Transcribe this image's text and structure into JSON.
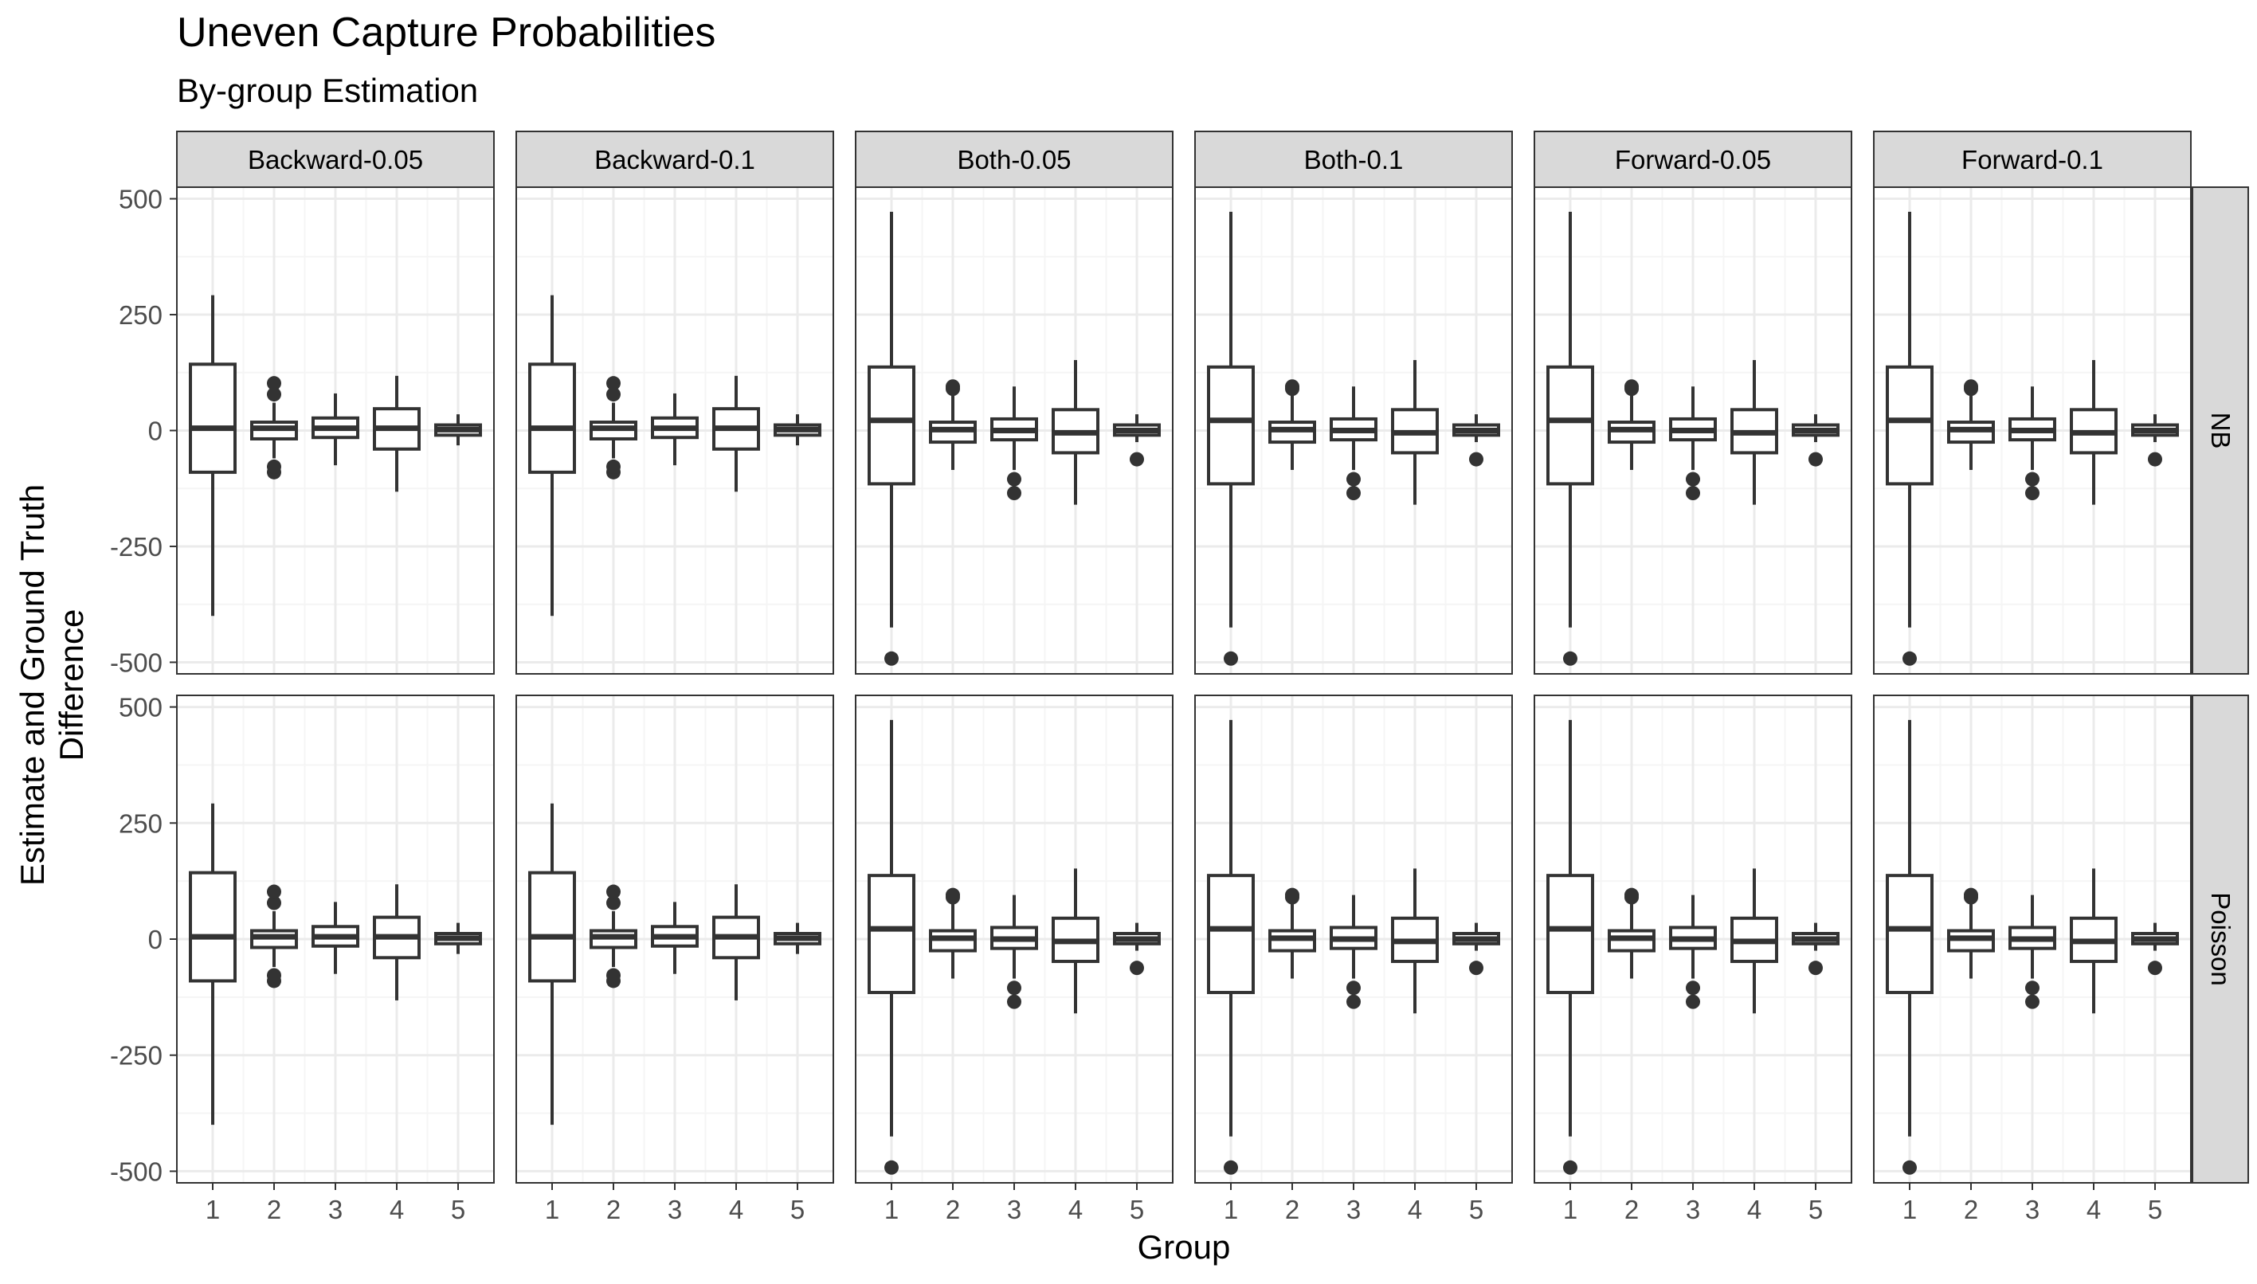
{
  "chart_data": {
    "type": "boxplot",
    "title": "Uneven Capture Probabilities",
    "subtitle": "By-group Estimation",
    "xlabel": "Group",
    "ylabel_lines": [
      "Estimate and Ground Truth",
      "Difference"
    ],
    "categories": [
      "1",
      "2",
      "3",
      "4",
      "5"
    ],
    "y_ticks": [
      500,
      250,
      0,
      -250,
      -500
    ],
    "y_tick_labels": [
      "500",
      "250",
      "0",
      "-250",
      "-500"
    ],
    "ylim": [
      -525,
      525
    ],
    "grid": true,
    "facet_columns": [
      "Backward-0.05",
      "Backward-0.1",
      "Both-0.05",
      "Both-0.1",
      "Forward-0.05",
      "Forward-0.1"
    ],
    "facet_rows": [
      "NB",
      "Poisson"
    ],
    "box_sets": {
      "backward": [
        {
          "group": "1",
          "whisker_low": -400,
          "q1": -90,
          "median": 5,
          "q3": 143,
          "whisker_high": 292,
          "outliers": []
        },
        {
          "group": "2",
          "whisker_low": -60,
          "q1": -18,
          "median": 5,
          "q3": 18,
          "whisker_high": 60,
          "outliers": [
            -90,
            -78,
            78,
            102
          ]
        },
        {
          "group": "3",
          "whisker_low": -75,
          "q1": -15,
          "median": 5,
          "q3": 27,
          "whisker_high": 80,
          "outliers": []
        },
        {
          "group": "4",
          "whisker_low": -132,
          "q1": -40,
          "median": 5,
          "q3": 47,
          "whisker_high": 118,
          "outliers": []
        },
        {
          "group": "5",
          "whisker_low": -32,
          "q1": -10,
          "median": 2,
          "q3": 12,
          "whisker_high": 35,
          "outliers": []
        }
      ],
      "both_forward": [
        {
          "group": "1",
          "whisker_low": -425,
          "q1": -115,
          "median": 22,
          "q3": 137,
          "whisker_high": 472,
          "outliers": [
            -492
          ]
        },
        {
          "group": "2",
          "whisker_low": -85,
          "q1": -25,
          "median": 2,
          "q3": 18,
          "whisker_high": 85,
          "outliers": [
            90,
            95
          ]
        },
        {
          "group": "3",
          "whisker_low": -85,
          "q1": -20,
          "median": 0,
          "q3": 25,
          "whisker_high": 95,
          "outliers": [
            -105,
            -135
          ]
        },
        {
          "group": "4",
          "whisker_low": -160,
          "q1": -48,
          "median": -5,
          "q3": 45,
          "whisker_high": 152,
          "outliers": []
        },
        {
          "group": "5",
          "whisker_low": -25,
          "q1": -10,
          "median": 0,
          "q3": 12,
          "whisker_high": 35,
          "outliers": [
            -62
          ]
        }
      ]
    },
    "facet_box_set": [
      "backward",
      "backward",
      "both_forward",
      "both_forward",
      "both_forward",
      "both_forward"
    ]
  },
  "colors": {
    "strip_fill": "#d9d9d9",
    "panel_border": "#333333",
    "grid_major": "#ebebeb",
    "grid_minor": "#f5f5f5",
    "box_line": "#333333",
    "text": "#000000",
    "tick_text": "#4d4d4d"
  }
}
